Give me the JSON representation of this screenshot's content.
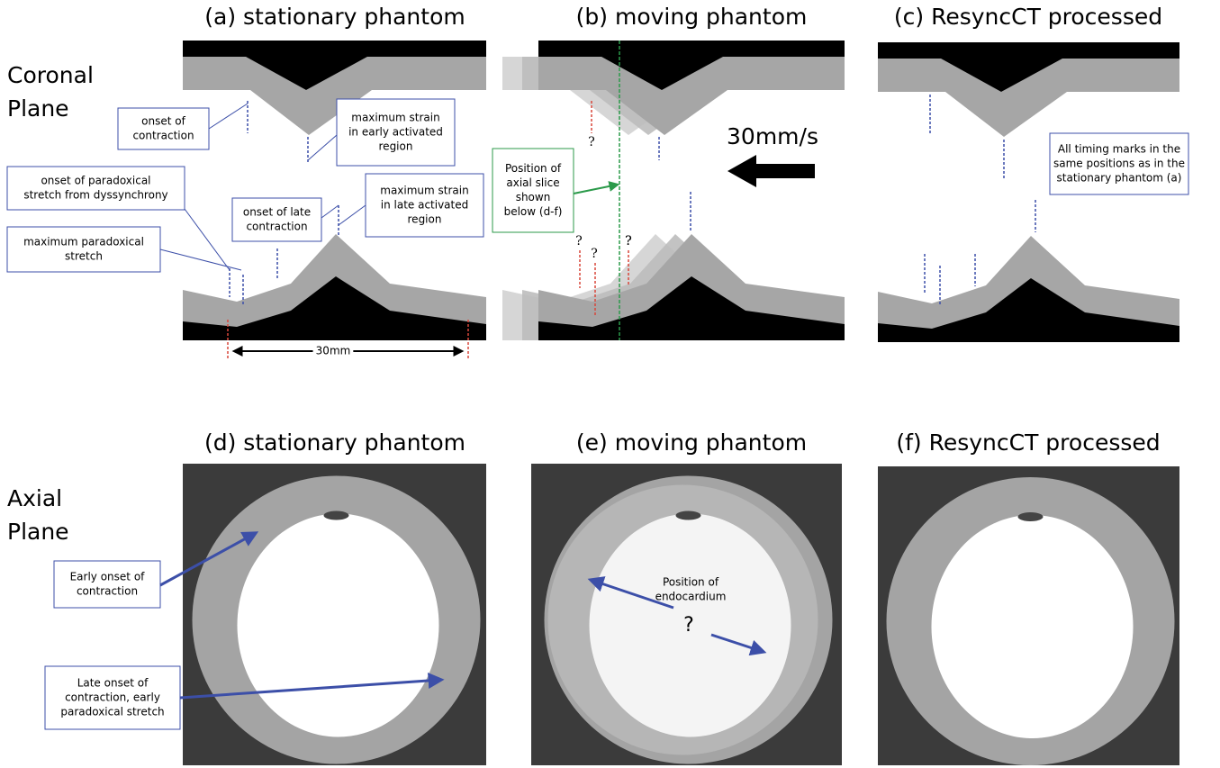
{
  "row_labels": [
    {
      "lines": [
        "Coronal",
        "Plane"
      ]
    },
    {
      "lines": [
        "Axial",
        "Plane"
      ]
    }
  ],
  "panels": [
    {
      "title": "(a) stationary phantom"
    },
    {
      "title": "(b) moving phantom"
    },
    {
      "title": "(c) ResyncCT processed"
    },
    {
      "title": "(d) stationary phantom"
    },
    {
      "title": "(e) moving phantom"
    },
    {
      "title": "(f) ResyncCT processed"
    }
  ],
  "annotations": [
    {
      "lines": [
        "onset of",
        "contraction"
      ]
    },
    {
      "lines": [
        "maximum strain",
        "in early activated",
        "region"
      ]
    },
    {
      "lines": [
        "onset of paradoxical",
        "stretch from dyssynchrony"
      ]
    },
    {
      "lines": [
        "onset of late",
        "contraction"
      ]
    },
    {
      "lines": [
        "maximum strain",
        "in late activated",
        "region"
      ]
    },
    {
      "lines": [
        "maximum paradoxical",
        "stretch"
      ]
    },
    {
      "lines": [
        "Position of",
        "axial slice",
        "shown",
        "below (d-f)"
      ]
    },
    {
      "lines": [
        "All timing marks in the",
        "same positions as in the",
        "stationary phantom (a)"
      ]
    },
    {
      "lines": [
        "Early onset of",
        "contraction"
      ]
    },
    {
      "lines": [
        "Late onset of",
        "contraction, early",
        "paradoxical stretch"
      ]
    },
    {
      "lines": [
        "Position of",
        "endocardium"
      ]
    }
  ],
  "labels": {
    "scale": "30mm",
    "speed": "30mm/s"
  },
  "question_marks": [
    "?",
    "?",
    "?",
    "?",
    "?"
  ],
  "endocardium_question": "?"
}
